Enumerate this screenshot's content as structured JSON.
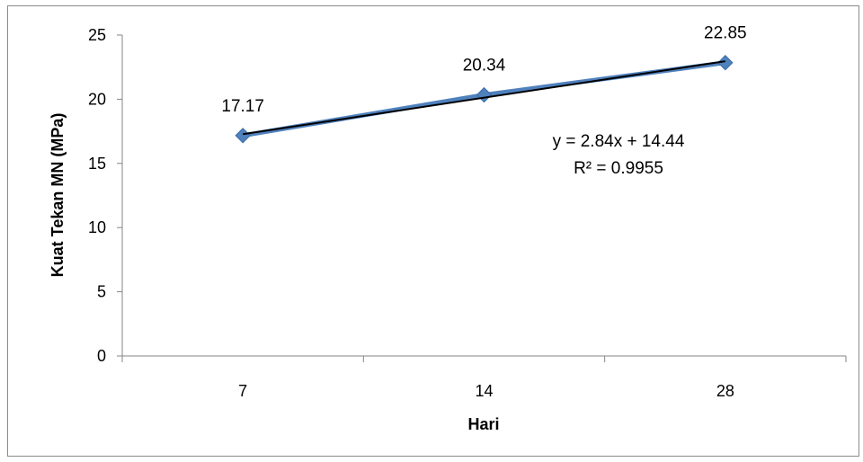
{
  "chart_data": {
    "type": "line",
    "categories": [
      "7",
      "14",
      "28"
    ],
    "series": [
      {
        "values": [
          17.17,
          20.34,
          22.85
        ],
        "color": "#4f81bd",
        "marker": "diamond"
      }
    ],
    "data_labels": [
      "17.17",
      "20.34",
      "22.85"
    ],
    "trendline": {
      "type": "linear",
      "slope": 2.84,
      "intercept": 14.44,
      "color": "#000000",
      "equation_text": "y = 2.84x + 14.44",
      "r2_text": "R² = 0.9955"
    },
    "xlabel": "Hari",
    "ylabel": "Kuat Tekan MN (MPa)",
    "ylim": [
      0,
      25
    ],
    "yticks": [
      "0",
      "5",
      "10",
      "15",
      "20",
      "25"
    ],
    "grid": false,
    "legend": "none"
  }
}
